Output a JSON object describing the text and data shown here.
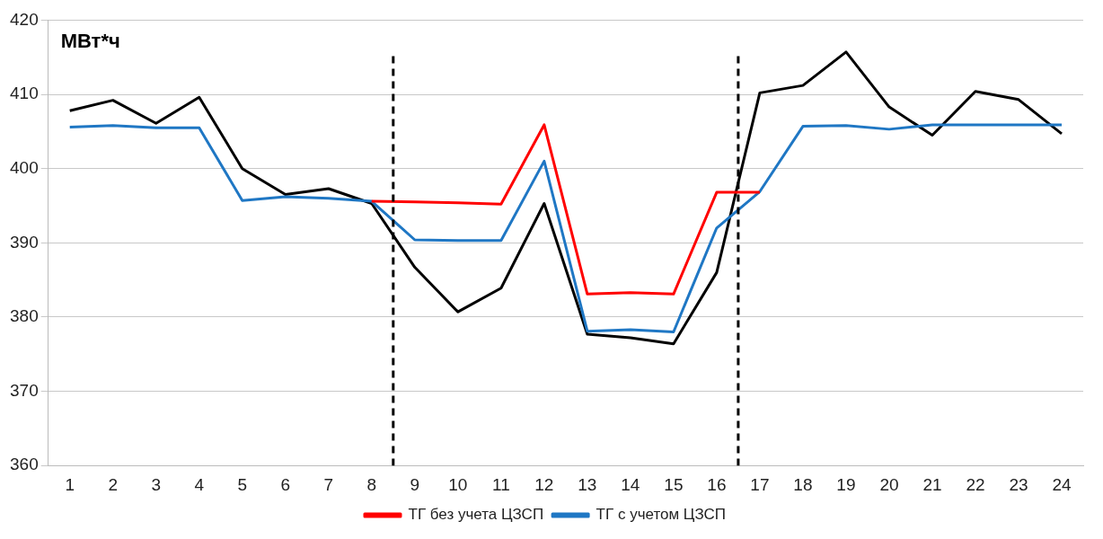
{
  "chart_data": {
    "type": "line",
    "ylabel": "МВт*ч",
    "x": [
      1,
      2,
      3,
      4,
      5,
      6,
      7,
      8,
      9,
      10,
      11,
      12,
      13,
      14,
      15,
      16,
      17,
      18,
      19,
      20,
      21,
      22,
      23,
      24
    ],
    "xlim": [
      0.5,
      24.5
    ],
    "xticks": [
      1,
      2,
      3,
      4,
      5,
      6,
      7,
      8,
      9,
      10,
      11,
      12,
      13,
      14,
      15,
      16,
      17,
      18,
      19,
      20,
      21,
      22,
      23,
      24
    ],
    "ylim": [
      360,
      420
    ],
    "yticks": [
      360,
      370,
      380,
      390,
      400,
      410,
      420
    ],
    "grid": "y",
    "legend": "bottom",
    "marker": "none",
    "line_style": "solid",
    "series": [
      {
        "name": "ТГ без учета ЦЗСП",
        "color": "#ff0000",
        "values": [
          null,
          null,
          null,
          null,
          null,
          null,
          null,
          395.6,
          395.5,
          395.4,
          395.2,
          405.9,
          383.1,
          383.3,
          383.1,
          396.8,
          396.8,
          null,
          null,
          null,
          null,
          null,
          null,
          null
        ]
      },
      {
        "name": "ТГ с учетом ЦЗСП",
        "color": "#1f77c4",
        "values": [
          405.6,
          405.8,
          405.5,
          405.5,
          395.7,
          396.2,
          396.0,
          395.6,
          390.4,
          390.3,
          390.3,
          401.0,
          378.1,
          378.3,
          378.0,
          392.0,
          396.9,
          405.7,
          405.8,
          405.3,
          405.9,
          405.9,
          405.9,
          405.9
        ]
      },
      {
        "color": "#000000",
        "values": [
          407.8,
          409.2,
          406.1,
          409.6,
          400.0,
          396.5,
          397.3,
          395.3,
          386.7,
          380.7,
          383.9,
          395.3,
          377.7,
          377.2,
          376.4,
          386.0,
          410.2,
          411.2,
          415.7,
          408.3,
          404.5,
          410.4,
          409.3,
          404.7
        ]
      }
    ],
    "ref_lines": [
      {
        "axis": "x",
        "value": 8.5,
        "color": "#000000",
        "line_style": "dashed"
      },
      {
        "axis": "x",
        "value": 16.5,
        "color": "#000000",
        "line_style": "dashed"
      }
    ]
  }
}
